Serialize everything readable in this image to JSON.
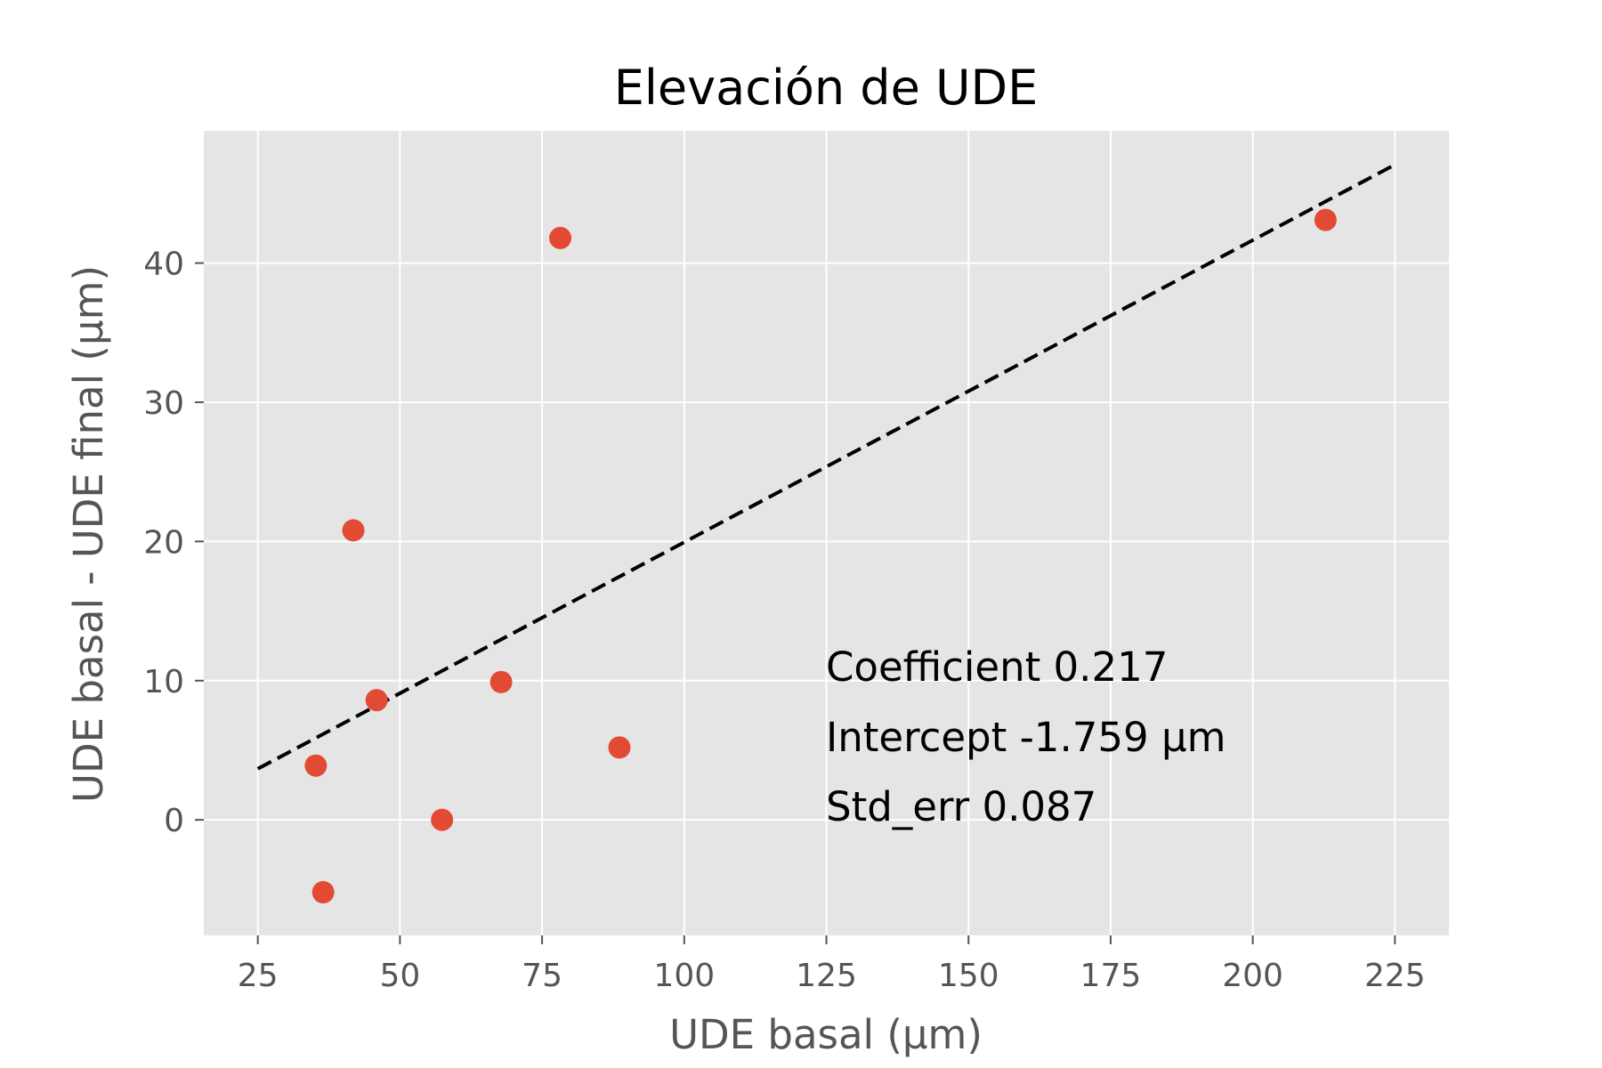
{
  "chart_data": {
    "type": "scatter",
    "title": "Elevación de UDE",
    "xlabel": "UDE basal (μm)",
    "ylabel": "UDE basal - UDE final (μm)",
    "xlim": [
      15.5,
      234.5
    ],
    "ylim": [
      -8.3,
      49.5
    ],
    "xticks": [
      25,
      50,
      75,
      100,
      125,
      150,
      175,
      200,
      225
    ],
    "xtick_labels": [
      "25",
      "50",
      "75",
      "100",
      "125",
      "150",
      "175",
      "200",
      "225"
    ],
    "yticks": [
      0,
      10,
      20,
      30,
      40
    ],
    "ytick_labels": [
      "0",
      "10",
      "20",
      "30",
      "40"
    ],
    "grid": true,
    "background": "#e5e5e5",
    "grid_color": "#ffffff",
    "point_color": "#e24a33",
    "points": [
      {
        "x": 35.2,
        "y": 3.9
      },
      {
        "x": 36.5,
        "y": -5.2
      },
      {
        "x": 41.8,
        "y": 20.8
      },
      {
        "x": 45.9,
        "y": 8.6
      },
      {
        "x": 57.4,
        "y": 0.0
      },
      {
        "x": 67.8,
        "y": 9.9
      },
      {
        "x": 78.2,
        "y": 41.8
      },
      {
        "x": 88.6,
        "y": 5.2
      },
      {
        "x": 212.8,
        "y": 43.1
      }
    ],
    "regression_line": {
      "x": [
        25,
        225
      ],
      "y": [
        3.67,
        47.07
      ],
      "color": "#000000",
      "style": "dashed"
    },
    "annotations": [
      "Coefficient 0.217",
      "Intercept -1.759 μm",
      "Std_err 0.087"
    ]
  }
}
